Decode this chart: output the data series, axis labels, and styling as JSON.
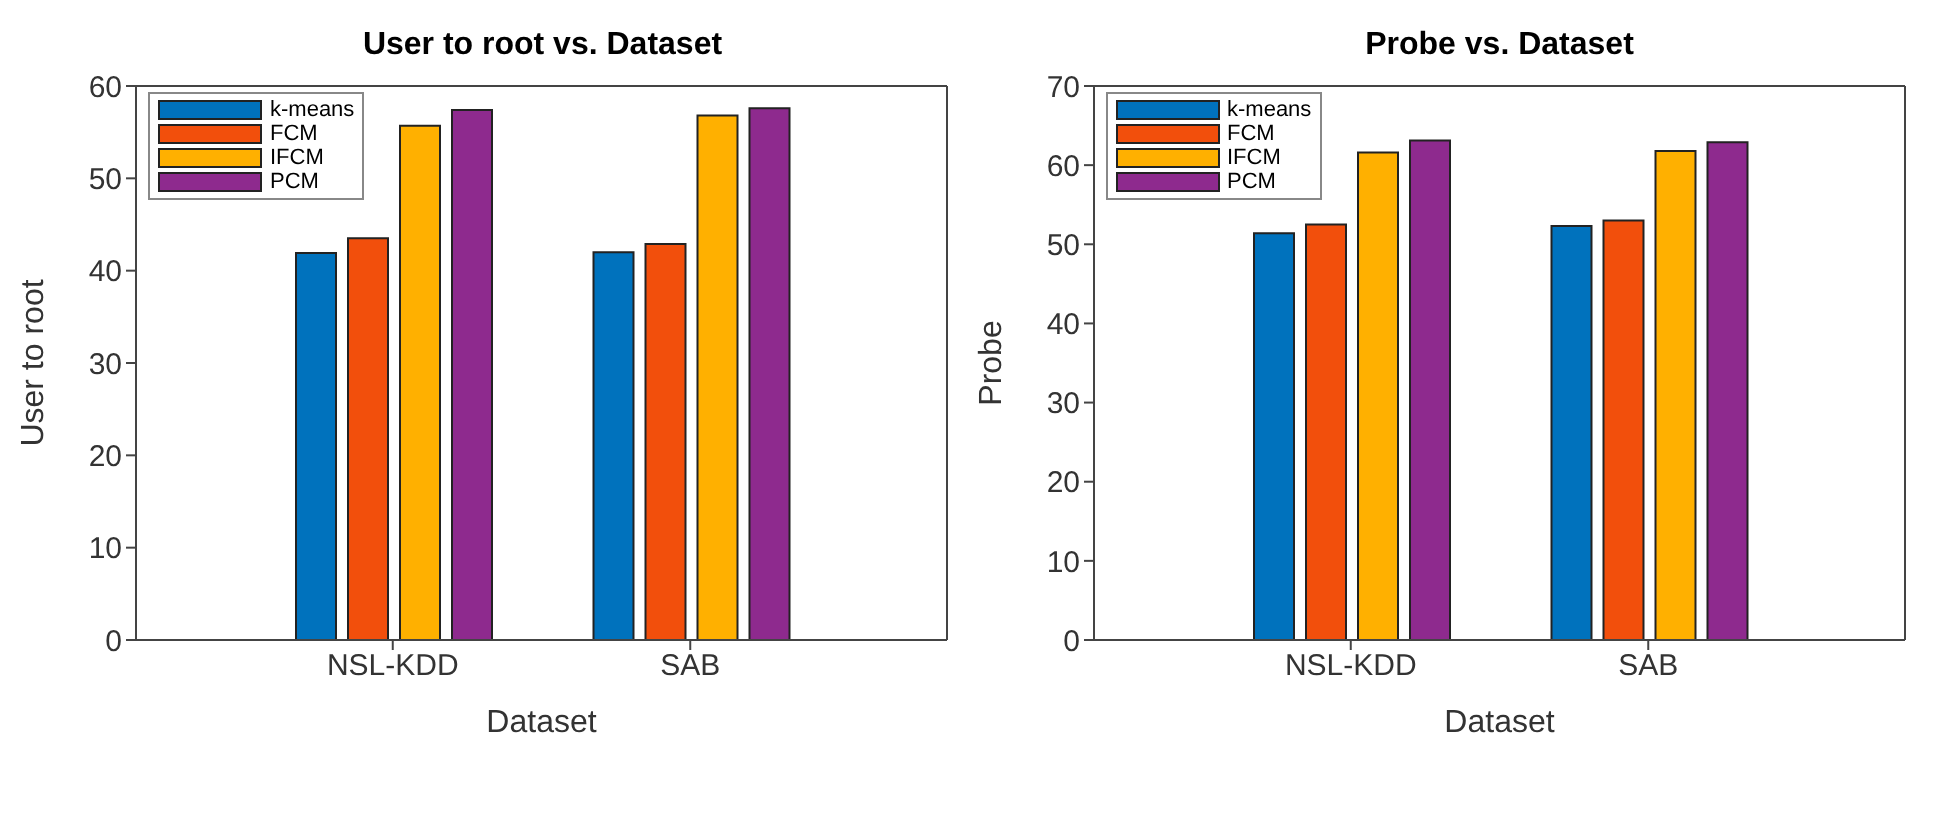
{
  "chart_data": [
    {
      "type": "bar",
      "title": "User to root vs. Dataset",
      "xlabel": "Dataset",
      "ylabel": "User to root",
      "categories": [
        "NSL-KDD",
        "SAB"
      ],
      "series": [
        {
          "name": "k-means",
          "color": "#0072bd",
          "values": [
            41.9,
            42.0
          ]
        },
        {
          "name": "FCM",
          "color": "#f24f0c",
          "values": [
            43.5,
            42.9
          ]
        },
        {
          "name": "IFCM",
          "color": "#ffb000",
          "values": [
            55.7,
            56.8
          ]
        },
        {
          "name": "PCM",
          "color": "#8e2a8e",
          "values": [
            57.4,
            57.6
          ]
        }
      ],
      "ylim": [
        0,
        60
      ],
      "yticks": [
        0,
        10,
        20,
        30,
        40,
        50,
        60
      ],
      "grid": false,
      "legend": "top left"
    },
    {
      "type": "bar",
      "title": "Probe vs. Dataset",
      "xlabel": "Dataset",
      "ylabel": "Probe",
      "categories": [
        "NSL-KDD",
        "SAB"
      ],
      "series": [
        {
          "name": "k-means",
          "color": "#0072bd",
          "values": [
            51.4,
            52.3
          ]
        },
        {
          "name": "FCM",
          "color": "#f24f0c",
          "values": [
            52.5,
            53.0
          ]
        },
        {
          "name": "IFCM",
          "color": "#ffb000",
          "values": [
            61.6,
            61.8
          ]
        },
        {
          "name": "PCM",
          "color": "#8e2a8e",
          "values": [
            63.1,
            62.9
          ]
        }
      ],
      "ylim": [
        0,
        70
      ],
      "yticks": [
        0,
        10,
        20,
        30,
        40,
        50,
        60,
        70
      ],
      "grid": false,
      "legend": "top left"
    }
  ]
}
